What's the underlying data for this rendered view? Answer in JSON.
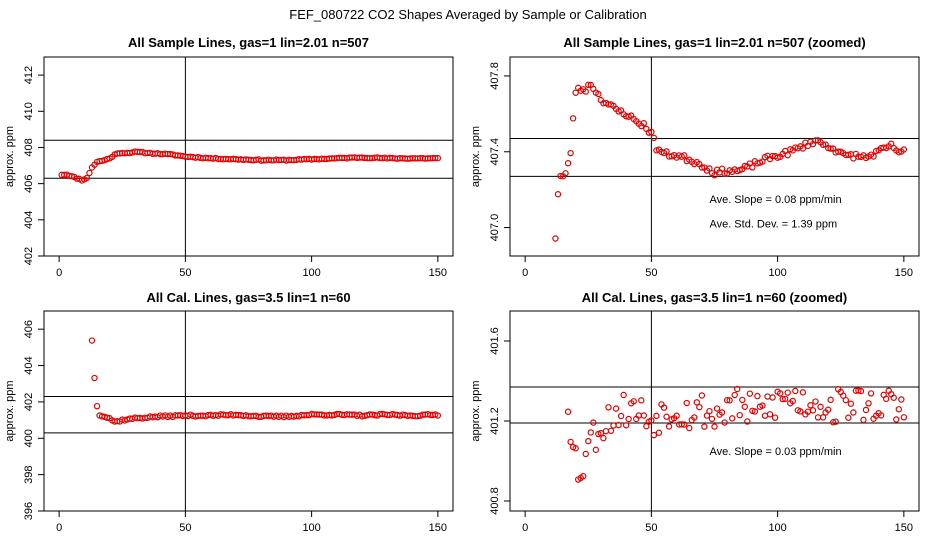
{
  "figure": {
    "title": "FEF_080722  CO2 Shapes Averaged by Sample or Calibration"
  },
  "chart_data": [
    {
      "type": "scatter",
      "title": "All Sample Lines, gas=1 lin=2.01 n=507",
      "xlabel": "",
      "ylabel": "approx. ppm",
      "xlim": [
        -6,
        156
      ],
      "ylim": [
        402,
        413
      ],
      "xticks": [
        0,
        50,
        100,
        150
      ],
      "yticks": [
        402,
        404,
        406,
        408,
        410,
        412
      ],
      "vline": 50,
      "hlines": [
        406.3,
        408.4
      ],
      "annotations": [],
      "anchors": [
        [
          1,
          406.5
        ],
        [
          3,
          406.5
        ],
        [
          5,
          406.4
        ],
        [
          7,
          406.3
        ],
        [
          9,
          406.2
        ],
        [
          11,
          406.3
        ],
        [
          13,
          406.9
        ],
        [
          15,
          407.2
        ],
        [
          18,
          407.3
        ],
        [
          20,
          407.4
        ],
        [
          22,
          407.6
        ],
        [
          24,
          407.7
        ],
        [
          27,
          407.7
        ],
        [
          30,
          407.75
        ],
        [
          35,
          407.7
        ],
        [
          40,
          407.65
        ],
        [
          45,
          407.6
        ],
        [
          50,
          407.5
        ],
        [
          60,
          407.4
        ],
        [
          70,
          407.35
        ],
        [
          80,
          407.3
        ],
        [
          90,
          407.3
        ],
        [
          100,
          407.35
        ],
        [
          110,
          407.4
        ],
        [
          120,
          407.45
        ],
        [
          130,
          407.4
        ],
        [
          140,
          407.4
        ],
        [
          150,
          407.4
        ]
      ],
      "noise": 0.03,
      "seed": 11
    },
    {
      "type": "scatter",
      "title": "All Sample Lines, gas=1 lin=2.01 n=507 (zoomed)",
      "xlabel": "",
      "ylabel": "approx. ppm",
      "xlim": [
        -6,
        156
      ],
      "ylim": [
        406.85,
        407.9
      ],
      "xticks": [
        0,
        50,
        100,
        150
      ],
      "yticks": [
        407.0,
        407.4,
        407.8
      ],
      "vline": 50,
      "hlines": [
        407.27,
        407.47
      ],
      "annotations": [
        {
          "text": "Ave. Slope =  0.08  ppm/min",
          "x": 73,
          "y": 407.13
        },
        {
          "text": "Ave. Std. Dev. =  1.39  ppm",
          "x": 73,
          "y": 407.0
        }
      ],
      "anchors": [
        [
          12,
          406.95
        ],
        [
          13,
          407.18
        ],
        [
          14,
          407.27
        ],
        [
          15,
          407.27
        ],
        [
          16,
          407.28
        ],
        [
          17,
          407.33
        ],
        [
          18,
          407.4
        ],
        [
          19,
          407.57
        ],
        [
          20,
          407.72
        ],
        [
          22,
          407.73
        ],
        [
          24,
          407.73
        ],
        [
          26,
          407.76
        ],
        [
          28,
          407.72
        ],
        [
          30,
          407.68
        ],
        [
          33,
          407.65
        ],
        [
          36,
          407.62
        ],
        [
          40,
          407.6
        ],
        [
          44,
          407.56
        ],
        [
          47,
          407.54
        ],
        [
          50,
          407.5
        ],
        [
          52,
          407.42
        ],
        [
          55,
          407.39
        ],
        [
          60,
          407.38
        ],
        [
          65,
          407.36
        ],
        [
          70,
          407.33
        ],
        [
          75,
          407.29
        ],
        [
          80,
          407.3
        ],
        [
          85,
          407.3
        ],
        [
          90,
          407.33
        ],
        [
          95,
          407.36
        ],
        [
          100,
          407.38
        ],
        [
          105,
          407.4
        ],
        [
          110,
          407.43
        ],
        [
          115,
          407.46
        ],
        [
          118,
          407.44
        ],
        [
          122,
          407.42
        ],
        [
          126,
          407.38
        ],
        [
          130,
          407.38
        ],
        [
          135,
          407.37
        ],
        [
          140,
          407.4
        ],
        [
          145,
          407.43
        ],
        [
          148,
          407.4
        ],
        [
          150,
          407.4
        ]
      ],
      "noise": 0.015,
      "seed": 23
    },
    {
      "type": "scatter",
      "title": "All Cal. Lines, gas=3.5 lin=1 n=60",
      "xlabel": "",
      "ylabel": "approx. ppm",
      "xlim": [
        -6,
        156
      ],
      "ylim": [
        396,
        407
      ],
      "xticks": [
        0,
        50,
        100,
        150
      ],
      "yticks": [
        396,
        398,
        400,
        402,
        404,
        406
      ],
      "vline": 50,
      "hlines": [
        400.3,
        402.3
      ],
      "annotations": [],
      "anchors": [
        [
          13,
          405.4
        ],
        [
          14,
          403.3
        ],
        [
          15,
          401.8
        ],
        [
          16,
          401.3
        ],
        [
          18,
          401.2
        ],
        [
          20,
          401.1
        ],
        [
          22,
          400.9
        ],
        [
          25,
          401.0
        ],
        [
          30,
          401.1
        ],
        [
          40,
          401.2
        ],
        [
          50,
          401.25
        ],
        [
          60,
          401.25
        ],
        [
          70,
          401.3
        ],
        [
          80,
          401.2
        ],
        [
          90,
          401.2
        ],
        [
          100,
          401.3
        ],
        [
          110,
          401.3
        ],
        [
          120,
          401.25
        ],
        [
          130,
          401.3
        ],
        [
          140,
          401.25
        ],
        [
          150,
          401.3
        ]
      ],
      "noise": 0.05,
      "seed": 37
    },
    {
      "type": "scatter",
      "title": "All Cal. Lines, gas=3.5 lin=1 n=60 (zoomed)",
      "xlabel": "",
      "ylabel": "approx. ppm",
      "xlim": [
        -6,
        156
      ],
      "ylim": [
        400.75,
        401.75
      ],
      "xticks": [
        0,
        50,
        100,
        150
      ],
      "yticks": [
        400.8,
        401.2,
        401.6
      ],
      "vline": 50,
      "hlines": [
        401.19,
        401.37
      ],
      "annotations": [
        {
          "text": "Ave. Slope =  0.03  ppm/min",
          "x": 73,
          "y": 401.03
        }
      ],
      "anchors": [
        [
          17,
          401.29
        ],
        [
          18,
          401.17
        ],
        [
          19,
          401.14
        ],
        [
          20,
          401.04
        ],
        [
          21,
          400.87
        ],
        [
          22,
          400.96
        ],
        [
          23,
          400.98
        ],
        [
          24,
          401.09
        ],
        [
          26,
          401.12
        ],
        [
          28,
          401.14
        ],
        [
          30,
          401.17
        ],
        [
          32,
          401.2
        ],
        [
          35,
          401.23
        ],
        [
          40,
          401.26
        ],
        [
          45,
          401.25
        ],
        [
          50,
          401.2
        ],
        [
          55,
          401.25
        ],
        [
          60,
          401.26
        ],
        [
          65,
          401.24
        ],
        [
          70,
          401.26
        ],
        [
          75,
          401.22
        ],
        [
          80,
          401.27
        ],
        [
          85,
          401.28
        ],
        [
          90,
          401.24
        ],
        [
          95,
          401.26
        ],
        [
          100,
          401.3
        ],
        [
          105,
          401.32
        ],
        [
          110,
          401.29
        ],
        [
          115,
          401.3
        ],
        [
          120,
          401.26
        ],
        [
          125,
          401.28
        ],
        [
          130,
          401.3
        ],
        [
          135,
          401.27
        ],
        [
          140,
          401.29
        ],
        [
          145,
          401.27
        ],
        [
          150,
          401.25
        ]
      ],
      "noise": 0.09,
      "seed": 53
    }
  ],
  "colors": {
    "points": "#e60000",
    "axes": "#000000",
    "background": "#ffffff"
  }
}
